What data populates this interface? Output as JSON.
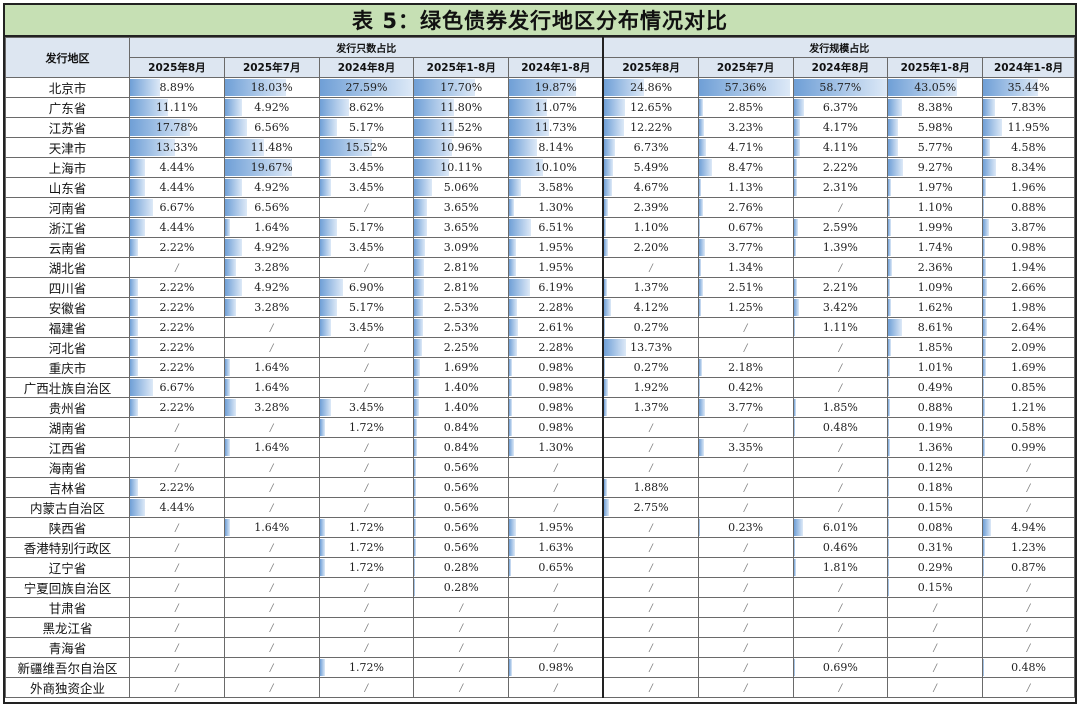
{
  "title": "表 5：绿色债券发行地区分布情况对比",
  "header": {
    "region": "发行地区",
    "group_count": "发行只数占比",
    "group_scale": "发行规模占比",
    "periods": [
      "2025年8月",
      "2025年7月",
      "2024年8月",
      "2025年1-8月",
      "2024年1-8月"
    ]
  },
  "empty_mark": "/",
  "bar_max": {
    "count": 27.59,
    "scale": 58.77
  },
  "rows": [
    {
      "region": "北京市",
      "count": [
        "8.89%",
        "18.03%",
        "27.59%",
        "17.70%",
        "19.87%"
      ],
      "scale": [
        "24.86%",
        "57.36%",
        "58.77%",
        "43.05%",
        "35.44%"
      ]
    },
    {
      "region": "广东省",
      "count": [
        "11.11%",
        "4.92%",
        "8.62%",
        "11.80%",
        "11.07%"
      ],
      "scale": [
        "12.65%",
        "2.85%",
        "6.37%",
        "8.38%",
        "7.83%"
      ]
    },
    {
      "region": "江苏省",
      "count": [
        "17.78%",
        "6.56%",
        "5.17%",
        "11.52%",
        "11.73%"
      ],
      "scale": [
        "12.22%",
        "3.23%",
        "4.17%",
        "5.98%",
        "11.95%"
      ]
    },
    {
      "region": "天津市",
      "count": [
        "13.33%",
        "11.48%",
        "15.52%",
        "10.96%",
        "8.14%"
      ],
      "scale": [
        "6.73%",
        "4.71%",
        "4.11%",
        "5.77%",
        "4.58%"
      ]
    },
    {
      "region": "上海市",
      "count": [
        "4.44%",
        "19.67%",
        "3.45%",
        "10.11%",
        "10.10%"
      ],
      "scale": [
        "5.49%",
        "8.47%",
        "2.22%",
        "9.27%",
        "8.34%"
      ]
    },
    {
      "region": "山东省",
      "count": [
        "4.44%",
        "4.92%",
        "3.45%",
        "5.06%",
        "3.58%"
      ],
      "scale": [
        "4.67%",
        "1.13%",
        "2.31%",
        "1.97%",
        "1.96%"
      ]
    },
    {
      "region": "河南省",
      "count": [
        "6.67%",
        "6.56%",
        "/",
        "3.65%",
        "1.30%"
      ],
      "scale": [
        "2.39%",
        "2.76%",
        "/",
        "1.10%",
        "0.88%"
      ]
    },
    {
      "region": "浙江省",
      "count": [
        "4.44%",
        "1.64%",
        "5.17%",
        "3.65%",
        "6.51%"
      ],
      "scale": [
        "1.10%",
        "0.67%",
        "2.59%",
        "1.99%",
        "3.87%"
      ]
    },
    {
      "region": "云南省",
      "count": [
        "2.22%",
        "4.92%",
        "3.45%",
        "3.09%",
        "1.95%"
      ],
      "scale": [
        "2.20%",
        "3.77%",
        "1.39%",
        "1.74%",
        "0.98%"
      ]
    },
    {
      "region": "湖北省",
      "count": [
        "/",
        "3.28%",
        "/",
        "2.81%",
        "1.95%"
      ],
      "scale": [
        "/",
        "1.34%",
        "/",
        "2.36%",
        "1.94%"
      ]
    },
    {
      "region": "四川省",
      "count": [
        "2.22%",
        "4.92%",
        "6.90%",
        "2.81%",
        "6.19%"
      ],
      "scale": [
        "1.37%",
        "2.51%",
        "2.21%",
        "1.09%",
        "2.66%"
      ]
    },
    {
      "region": "安徽省",
      "count": [
        "2.22%",
        "3.28%",
        "5.17%",
        "2.53%",
        "2.28%"
      ],
      "scale": [
        "4.12%",
        "1.25%",
        "3.42%",
        "1.62%",
        "1.98%"
      ]
    },
    {
      "region": "福建省",
      "count": [
        "2.22%",
        "/",
        "3.45%",
        "2.53%",
        "2.61%"
      ],
      "scale": [
        "0.27%",
        "/",
        "1.11%",
        "8.61%",
        "2.64%"
      ]
    },
    {
      "region": "河北省",
      "count": [
        "2.22%",
        "/",
        "/",
        "2.25%",
        "2.28%"
      ],
      "scale": [
        "13.73%",
        "/",
        "/",
        "1.85%",
        "2.09%"
      ]
    },
    {
      "region": "重庆市",
      "count": [
        "2.22%",
        "1.64%",
        "/",
        "1.69%",
        "0.98%"
      ],
      "scale": [
        "0.27%",
        "2.18%",
        "/",
        "1.01%",
        "1.69%"
      ]
    },
    {
      "region": "广西壮族自治区",
      "count": [
        "6.67%",
        "1.64%",
        "/",
        "1.40%",
        "0.98%"
      ],
      "scale": [
        "1.92%",
        "0.42%",
        "/",
        "0.49%",
        "0.85%"
      ]
    },
    {
      "region": "贵州省",
      "count": [
        "2.22%",
        "3.28%",
        "3.45%",
        "1.40%",
        "0.98%"
      ],
      "scale": [
        "1.37%",
        "3.77%",
        "1.85%",
        "0.88%",
        "1.21%"
      ]
    },
    {
      "region": "湖南省",
      "count": [
        "/",
        "/",
        "1.72%",
        "0.84%",
        "0.98%"
      ],
      "scale": [
        "/",
        "/",
        "0.48%",
        "0.19%",
        "0.58%"
      ]
    },
    {
      "region": "江西省",
      "count": [
        "/",
        "1.64%",
        "/",
        "0.84%",
        "1.30%"
      ],
      "scale": [
        "/",
        "3.35%",
        "/",
        "1.36%",
        "0.99%"
      ]
    },
    {
      "region": "海南省",
      "count": [
        "/",
        "/",
        "/",
        "0.56%",
        "/"
      ],
      "scale": [
        "/",
        "/",
        "/",
        "0.12%",
        "/"
      ]
    },
    {
      "region": "吉林省",
      "count": [
        "2.22%",
        "/",
        "/",
        "0.56%",
        "/"
      ],
      "scale": [
        "1.88%",
        "/",
        "/",
        "0.18%",
        "/"
      ]
    },
    {
      "region": "内蒙古自治区",
      "count": [
        "4.44%",
        "/",
        "/",
        "0.56%",
        "/"
      ],
      "scale": [
        "2.75%",
        "/",
        "/",
        "0.15%",
        "/"
      ]
    },
    {
      "region": "陕西省",
      "count": [
        "/",
        "1.64%",
        "1.72%",
        "0.56%",
        "1.95%"
      ],
      "scale": [
        "/",
        "0.23%",
        "6.01%",
        "0.08%",
        "4.94%"
      ]
    },
    {
      "region": "香港特别行政区",
      "count": [
        "/",
        "/",
        "1.72%",
        "0.56%",
        "1.63%"
      ],
      "scale": [
        "/",
        "/",
        "0.46%",
        "0.31%",
        "1.23%"
      ]
    },
    {
      "region": "辽宁省",
      "count": [
        "/",
        "/",
        "1.72%",
        "0.28%",
        "0.65%"
      ],
      "scale": [
        "/",
        "/",
        "1.81%",
        "0.29%",
        "0.87%"
      ]
    },
    {
      "region": "宁夏回族自治区",
      "count": [
        "/",
        "/",
        "/",
        "0.28%",
        "/"
      ],
      "scale": [
        "/",
        "/",
        "/",
        "0.15%",
        "/"
      ]
    },
    {
      "region": "甘肃省",
      "count": [
        "/",
        "/",
        "/",
        "/",
        "/"
      ],
      "scale": [
        "/",
        "/",
        "/",
        "/",
        "/"
      ]
    },
    {
      "region": "黑龙江省",
      "count": [
        "/",
        "/",
        "/",
        "/",
        "/"
      ],
      "scale": [
        "/",
        "/",
        "/",
        "/",
        "/"
      ]
    },
    {
      "region": "青海省",
      "count": [
        "/",
        "/",
        "/",
        "/",
        "/"
      ],
      "scale": [
        "/",
        "/",
        "/",
        "/",
        "/"
      ]
    },
    {
      "region": "新疆维吾尔自治区",
      "count": [
        "/",
        "/",
        "1.72%",
        "/",
        "0.98%"
      ],
      "scale": [
        "/",
        "/",
        "0.69%",
        "/",
        "0.48%"
      ]
    },
    {
      "region": "外商独资企业",
      "count": [
        "/",
        "/",
        "/",
        "/",
        "/"
      ],
      "scale": [
        "/",
        "/",
        "/",
        "/",
        "/"
      ]
    }
  ]
}
